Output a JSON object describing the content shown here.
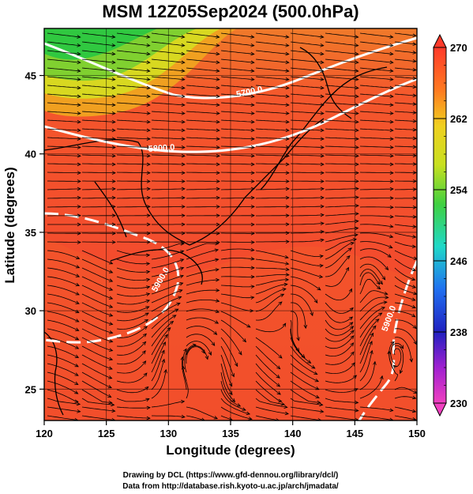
{
  "title": "MSM 12Z05Sep2024 (500.0hPa)",
  "x_axis": {
    "label": "Longitude (degrees)",
    "ticks": [
      "120",
      "125",
      "130",
      "135",
      "140",
      "145",
      "150"
    ]
  },
  "y_axis": {
    "label": "Latitude  (degrees)",
    "ticks": [
      "25",
      "30",
      "35",
      "40",
      "45"
    ]
  },
  "colorbar": {
    "ticks": [
      "230",
      "238",
      "246",
      "254",
      "262",
      "270"
    ]
  },
  "contour_labels": [
    "5700.0",
    "5800.0",
    "5900.0",
    "5900.0"
  ],
  "credits": {
    "line1": "Drawing by DCL (https://www.gfd-dennou.org/library/dcl/)",
    "line2": "Data from http://database.rish.kyoto-u.ac.jp/arch/jmadata/"
  },
  "map_data": {
    "type": "filled-contour-map-with-streamlines",
    "lon_range": [
      120,
      150
    ],
    "lat_range": [
      23,
      48
    ],
    "colorbar_range": [
      230,
      270
    ],
    "height_contours": [
      5700,
      5800,
      5900
    ],
    "colors": {
      "high": "#ff3c2c",
      "mid": "#ff6a2a",
      "yellow": "#e8e020",
      "green": "#30d030",
      "streamline": "#000000",
      "contour": "#ffffff"
    }
  }
}
